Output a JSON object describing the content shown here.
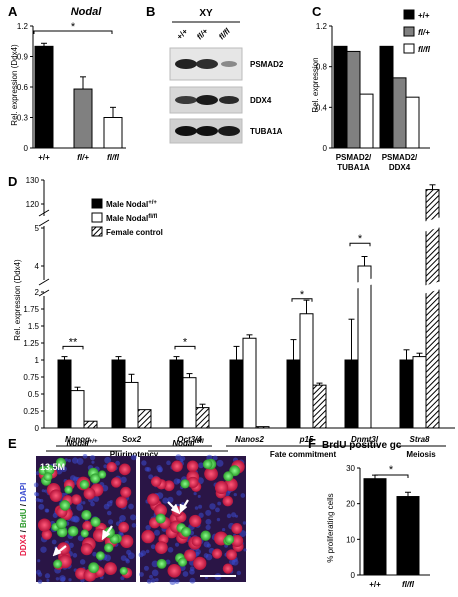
{
  "panels": {
    "a": {
      "letter": "A",
      "title": "Nodal",
      "ylabel": "Rel. expression (Ddx4)",
      "sig": "*"
    },
    "b": {
      "letter": "B",
      "title": "XY",
      "lanes": [
        "+/+",
        "fl/+",
        "fl/fl"
      ],
      "bands": [
        "PSMAD2",
        "DDX4",
        "TUBA1A"
      ]
    },
    "c": {
      "letter": "C",
      "ylabel": "Rel. expression",
      "legend": [
        "+/+",
        "fl/+",
        "fl/fl"
      ]
    },
    "d": {
      "letter": "D",
      "ylabel": "Rel. expression (Ddx4)",
      "legend": [
        "Male Nodal+/+",
        "Male Nodal fl/fl",
        "Female control"
      ],
      "legend_parts": {
        "nodal": "Male Nodal",
        "wt_sup": "+/+",
        "fl_sup": "fl/fl",
        "female": "Female control"
      },
      "groups": [
        "Pluripotency",
        "Fate commitment",
        "Meiosis"
      ],
      "sig_marks": [
        "**",
        "*",
        "*",
        "*"
      ]
    },
    "e": {
      "letter": "E",
      "col1": "Nodal",
      "col1_sup": "+/+",
      "col2": "Nodal",
      "col2_sup": "fl/fl",
      "stage": "13.5M",
      "stain": {
        "ddx4": "DDX4",
        "sep1": " / ",
        "brdu": "BrdU",
        "sep2": " / ",
        "dapi": "DAPI"
      }
    },
    "f": {
      "letter": "F",
      "title": "BrdU positive gc",
      "ylabel": "% proliferating cells",
      "sig": "*"
    }
  },
  "colors": {
    "wt": "#000000",
    "het": "#808080",
    "ko": "#ffffff",
    "ddx4": "#e8204a",
    "brdu": "#3bbf3b",
    "dapi": "#3a4bd0"
  },
  "chart_data": [
    {
      "type": "bar",
      "panel": "A",
      "title": "Nodal",
      "ylabel": "Rel. expression (Ddx4)",
      "categories": [
        "+/+",
        "fl/+",
        "fl/fl"
      ],
      "values": [
        1.0,
        0.58,
        0.3
      ],
      "errors": [
        0.03,
        0.12,
        0.1
      ],
      "ylim": [
        0,
        1.2
      ],
      "yticks": [
        "0",
        "0.3",
        "0.6",
        "0.9",
        "1.2"
      ]
    },
    {
      "type": "bar",
      "panel": "C",
      "ylabel": "Rel. expression",
      "categories": [
        "PSMAD2/ TUBA1A",
        "PSMAD2/ DDX4"
      ],
      "series": [
        {
          "name": "+/+",
          "values": [
            1.0,
            1.0
          ]
        },
        {
          "name": "fl/+",
          "values": [
            0.95,
            0.69
          ]
        },
        {
          "name": "fl/fl",
          "values": [
            0.53,
            0.5
          ]
        }
      ],
      "ylim": [
        0,
        1.2
      ],
      "yticks": [
        "0",
        "0.4",
        "0.8",
        "1.2"
      ]
    },
    {
      "type": "bar",
      "panel": "D",
      "ylabel": "Rel. expression (Ddx4)",
      "categories": [
        "Nanog",
        "Sox2",
        "Oct3/4",
        "Nanos2",
        "p15",
        "Dnmt3l",
        "Stra8"
      ],
      "series": [
        {
          "name": "Male Nodal+/+",
          "values": [
            1.0,
            1.0,
            1.0,
            1.0,
            1.0,
            1.0,
            1.0
          ]
        },
        {
          "name": "Male Nodal fl/fl",
          "values": [
            0.55,
            0.67,
            0.74,
            1.32,
            1.68,
            4.0,
            1.05
          ]
        },
        {
          "name": "Female control",
          "values": [
            0.1,
            0.27,
            0.3,
            0.02,
            0.63,
            null,
            126
          ]
        }
      ],
      "yticks": [
        "0",
        "0.25",
        "0.5",
        "0.75",
        "1",
        "1.25",
        "1.5",
        "1.75",
        "2",
        "4",
        "5",
        "120",
        "130"
      ],
      "axis_break": true
    },
    {
      "type": "bar",
      "panel": "F",
      "title": "BrdU positive gc",
      "ylabel": "% proliferating cells",
      "categories": [
        "+/+",
        "fl/fl"
      ],
      "values": [
        27,
        22
      ],
      "errors": [
        1.0,
        1.2
      ],
      "ylim": [
        0,
        30
      ],
      "yticks": [
        "0",
        "10",
        "20",
        "30"
      ]
    }
  ]
}
